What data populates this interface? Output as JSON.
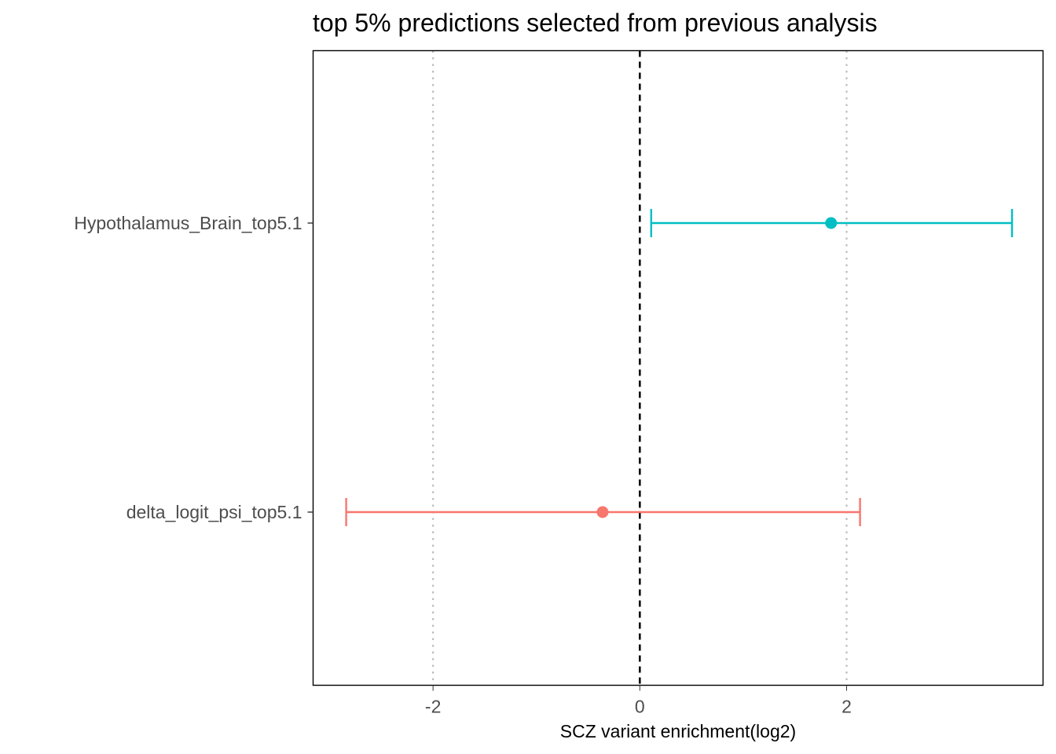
{
  "chart_data": {
    "type": "forest",
    "title": "top 5% predictions selected from previous analysis",
    "xlabel": "SCZ variant enrichment(log2)",
    "ylabel": "",
    "xlim": [
      -3.16,
      3.9
    ],
    "x_ticks": [
      -2,
      0,
      2
    ],
    "x_tick_labels": [
      "-2",
      "0",
      "2"
    ],
    "reference_line": 0,
    "grid": "vertical dotted at major x ticks",
    "legend": "none",
    "series": [
      {
        "label": "Hypothalamus_Brain_top5.1",
        "estimate": 1.85,
        "ci_low": 0.11,
        "ci_high": 3.6,
        "color": "#00BFC4"
      },
      {
        "label": "delta_logit_psi_top5.1",
        "estimate": -0.36,
        "ci_low": -2.84,
        "ci_high": 2.13,
        "color": "#F8766D"
      }
    ]
  }
}
